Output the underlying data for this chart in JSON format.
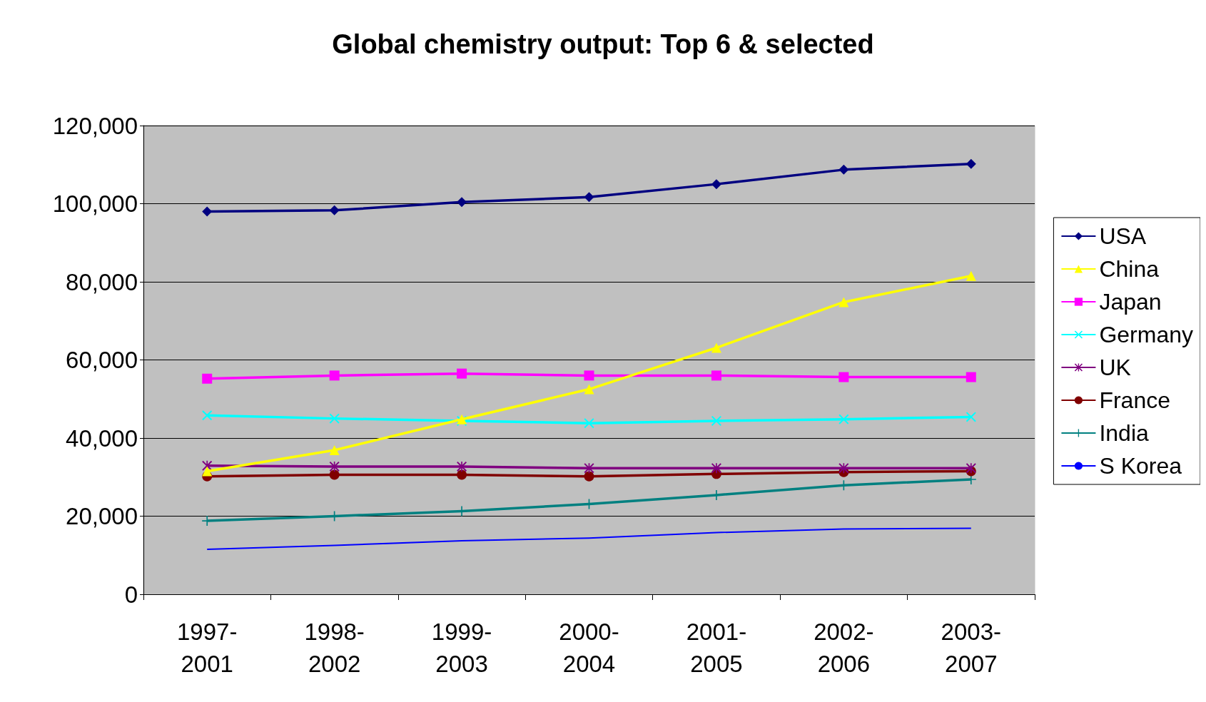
{
  "chart_data": {
    "type": "line",
    "title": "Global chemistry output: Top 6 & selected",
    "categories": [
      "1997-\n2001",
      "1998-\n2002",
      "1999-\n2003",
      "2000-\n2004",
      "2001-\n2005",
      "2002-\n2006",
      "2003-\n2007"
    ],
    "series": [
      {
        "name": "USA",
        "color": "#000080",
        "marker": "diamond",
        "values": [
          98000,
          98300,
          100400,
          101700,
          105000,
          108700,
          110200
        ]
      },
      {
        "name": "China",
        "color": "#ffff00",
        "marker": "triangle",
        "values": [
          31500,
          36900,
          44800,
          52500,
          63100,
          74800,
          81500
        ]
      },
      {
        "name": "Japan",
        "color": "#ff00ff",
        "marker": "square",
        "values": [
          55200,
          56000,
          56500,
          56000,
          56000,
          55600,
          55600
        ]
      },
      {
        "name": "Germany",
        "color": "#00ffff",
        "marker": "cross",
        "values": [
          45800,
          45000,
          44400,
          43800,
          44400,
          44800,
          45400
        ]
      },
      {
        "name": "UK",
        "color": "#800080",
        "marker": "star",
        "values": [
          32900,
          32700,
          32700,
          32300,
          32300,
          32300,
          32300
        ]
      },
      {
        "name": "France",
        "color": "#800000",
        "marker": "circle",
        "values": [
          30200,
          30600,
          30600,
          30200,
          30800,
          31300,
          31500
        ]
      },
      {
        "name": "India",
        "color": "#008080",
        "marker": "plus",
        "values": [
          18800,
          20000,
          21300,
          23100,
          25400,
          27900,
          29400
        ]
      },
      {
        "name": "S Korea",
        "color": "#0000ff",
        "marker": "none",
        "values": [
          11500,
          12500,
          13700,
          14400,
          15800,
          16700,
          16900
        ]
      }
    ],
    "ylim": [
      0,
      120000
    ],
    "yticks": [
      0,
      {
        "value": 20000,
        "label": "20,000"
      },
      {
        "value": 40000,
        "label": "40,000"
      },
      {
        "value": 60000,
        "label": "60,000"
      },
      {
        "value": 80000,
        "label": "80,000"
      },
      {
        "value": 100000,
        "label": "100,000"
      },
      {
        "value": 120000,
        "label": "120,000"
      }
    ],
    "grid": "y",
    "legend": "right"
  }
}
